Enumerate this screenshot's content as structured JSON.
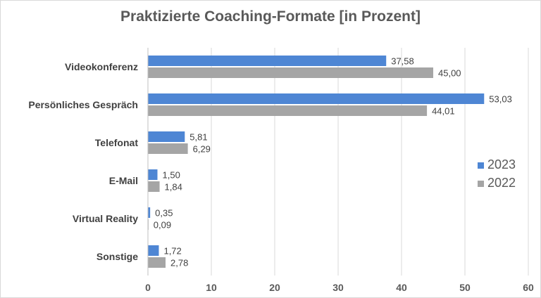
{
  "chart_data": {
    "type": "bar",
    "orientation": "horizontal",
    "title": "Praktizierte Coaching-Formate [in Prozent]",
    "categories": [
      "Videokonferenz",
      "Persönliches Gespräch",
      "Telefonat",
      "E-Mail",
      "Virtual Reality",
      "Sonstige"
    ],
    "series": [
      {
        "name": "2023",
        "color": "#4e86d4",
        "values": [
          37.58,
          53.03,
          5.81,
          1.5,
          0.35,
          1.72
        ],
        "labels": [
          "37,58",
          "53,03",
          "5,81",
          "1,50",
          "0,35",
          "1,72"
        ]
      },
      {
        "name": "2022",
        "color": "#a5a5a5",
        "values": [
          45.0,
          44.01,
          6.29,
          1.84,
          0.09,
          2.78
        ],
        "labels": [
          "45,00",
          "44,01",
          "6,29",
          "1,84",
          "0,09",
          "2,78"
        ]
      }
    ],
    "xlim": [
      0,
      60
    ],
    "ticks": [
      0,
      10,
      20,
      30,
      40,
      50,
      60
    ],
    "tick_labels": [
      "0",
      "10",
      "20",
      "30",
      "40",
      "50",
      "60"
    ],
    "grid": true,
    "legend_position": "right"
  }
}
